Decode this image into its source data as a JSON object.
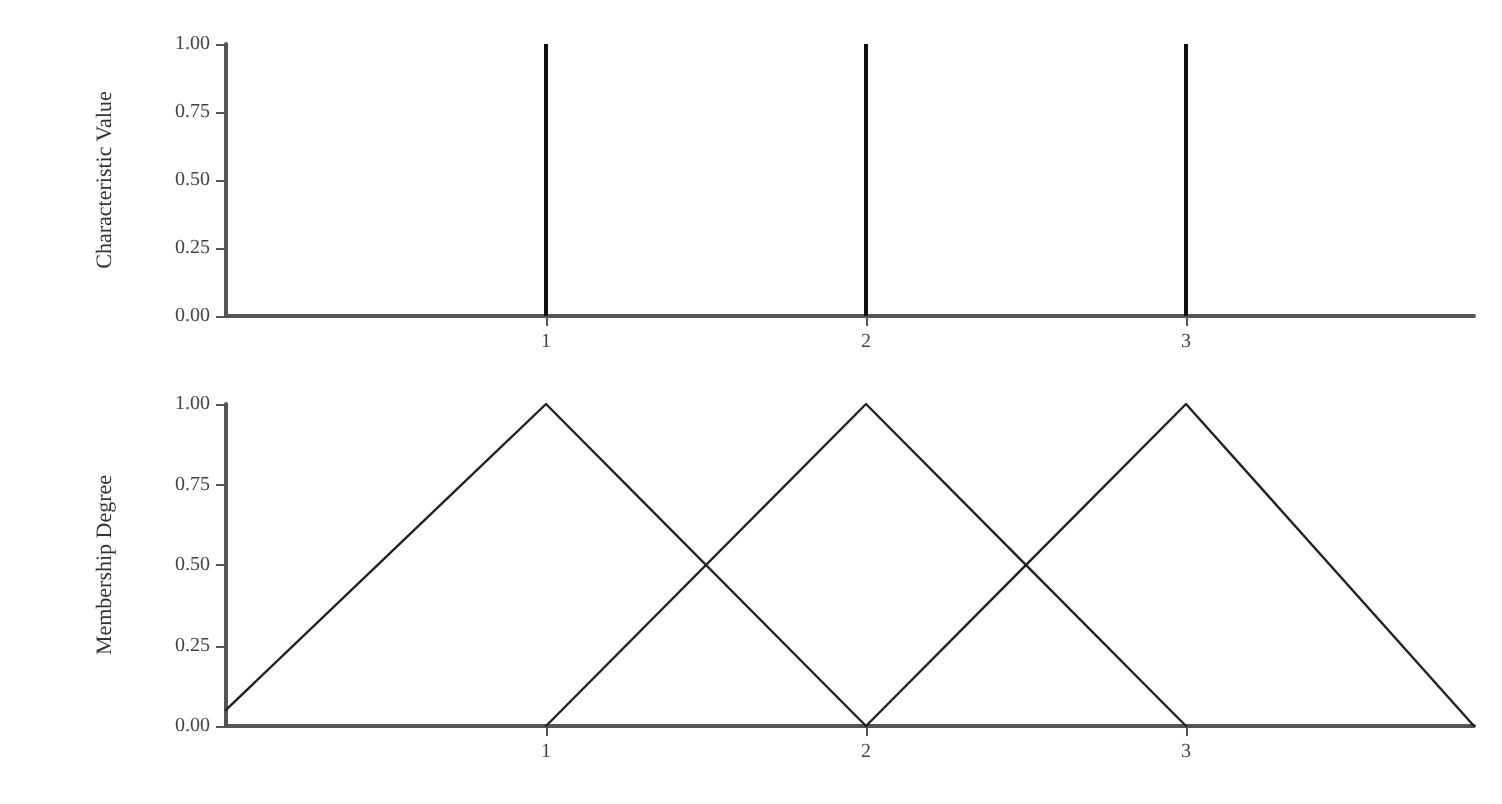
{
  "chart_data": [
    {
      "type": "bar",
      "ylabel": "Characteristic Value",
      "x": [
        1,
        2,
        3
      ],
      "values": [
        1,
        1,
        1
      ],
      "color": "#111111",
      "xlim": [
        0,
        3.9
      ],
      "xticks": [
        1,
        2,
        3
      ],
      "ylim": [
        0,
        1
      ],
      "yticks": [
        {
          "value": 0,
          "label": "0.00"
        },
        {
          "value": 0.25,
          "label": "0.25"
        },
        {
          "value": 0.5,
          "label": "0.50"
        },
        {
          "value": 0.75,
          "label": "0.75"
        },
        {
          "value": 1,
          "label": "1.00"
        }
      ],
      "grid": false
    },
    {
      "type": "line",
      "ylabel": "Membership Degree",
      "series": [
        {
          "x": [
            0,
            1,
            2
          ],
          "values": [
            0.05,
            1,
            0
          ],
          "color": "#222222"
        },
        {
          "x": [
            1,
            2,
            3
          ],
          "values": [
            0,
            1,
            0
          ],
          "color": "#222222"
        },
        {
          "x": [
            2,
            3,
            3.9
          ],
          "values": [
            0,
            1,
            0
          ],
          "color": "#222222"
        }
      ],
      "xlim": [
        0,
        3.9
      ],
      "xticks": [
        1,
        2,
        3
      ],
      "ylim": [
        0,
        1
      ],
      "yticks": [
        {
          "value": 0,
          "label": "0.00"
        },
        {
          "value": 0.25,
          "label": "0.25"
        },
        {
          "value": 0.5,
          "label": "0.50"
        },
        {
          "value": 0.75,
          "label": "0.75"
        },
        {
          "value": 1,
          "label": "1.00"
        }
      ],
      "grid": false,
      "marker": "none",
      "line_style": "solid"
    }
  ]
}
